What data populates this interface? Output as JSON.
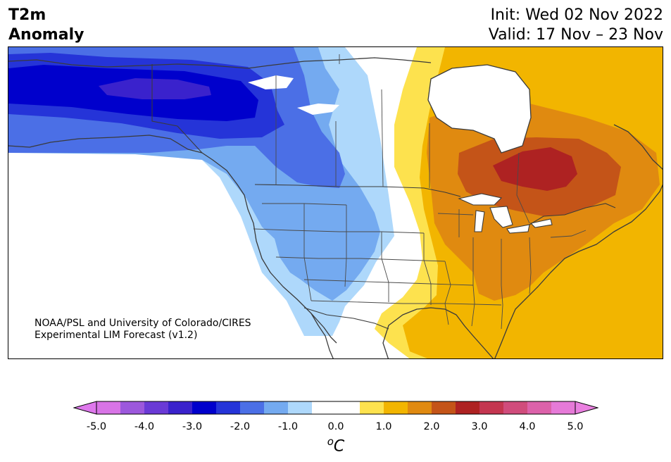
{
  "title": {
    "line1": "T2m",
    "line2": "Anomaly"
  },
  "init": "Init: Wed 02 Nov 2022",
  "valid": "Valid: 17 Nov – 23 Nov",
  "credit": {
    "line1": "NOAA/PSL and University of Colorado/CIRES",
    "line2": "Experimental LIM Forecast (v1.2)"
  },
  "colorbar": {
    "unit_symbol": "o",
    "unit_letter": "C",
    "min": -5.0,
    "max": 5.0,
    "step": 0.5,
    "extend": "both",
    "ticks": [
      "-5.0",
      "-4.0",
      "-3.0",
      "-2.0",
      "-1.0",
      "0.0",
      "1.0",
      "2.0",
      "3.0",
      "4.0",
      "5.0"
    ],
    "colors": [
      "#d874e6",
      "#9c58dc",
      "#6a3ad6",
      "#3a22cc",
      "#0000cc",
      "#2534d8",
      "#4b6fe6",
      "#74aaf0",
      "#aed8fb",
      "#ffffff",
      "#ffffff",
      "#fde24e",
      "#f2b500",
      "#e08a10",
      "#c45418",
      "#ae2222",
      "#c43650",
      "#d04c7c",
      "#dc62aa",
      "#e67ad8"
    ],
    "end_colors": {
      "low": "#de78ec",
      "high": "#ea80e0"
    }
  },
  "map": {
    "projection": "Lambert-style North America",
    "region": "North America: Alaska, Canada, contiguous United States, northern Mexico",
    "summary": "Cold anomalies (-1 to -3.5 °C) over Alaska, western Canada and the western US; warm anomalies (+1 to +3 °C) over eastern Canada, the Great Lakes and the eastern US, peaking near Hudson Bay / Ontario."
  }
}
